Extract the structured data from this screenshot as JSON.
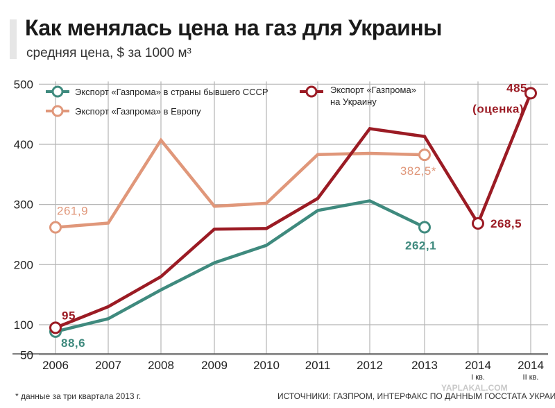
{
  "header": {
    "title": "Как менялась цена на газ для Украины",
    "subtitle": "средняя цена, $ за 1000 м³"
  },
  "footer": {
    "footnote": "* данные за три квартала 2013 г.",
    "source": "ИСТОЧНИКИ:  ГАЗПРОМ, ИНТЕРФАКС ПО ДАННЫМ ГОССТАТА УКРАИНЫ",
    "watermark": "YAPLAKAL.COM"
  },
  "colors": {
    "ukraine": "#9b1b24",
    "europe": "#e0977a",
    "ussr": "#3f8a7e",
    "grid": "#b5b5b5"
  },
  "chart_data": {
    "type": "line",
    "title": "Как менялась цена на газ для Украины",
    "ylabel": "средняя цена, $ за 1000 м³",
    "ylim": [
      50,
      500
    ],
    "yticks": [
      50,
      100,
      200,
      300,
      400,
      500
    ],
    "grid": true,
    "categories": [
      "2006",
      "2007",
      "2008",
      "2009",
      "2010",
      "2011",
      "2012",
      "2013",
      "2014",
      "2014"
    ],
    "sub_labels": [
      "",
      "",
      "",
      "",
      "",
      "",
      "",
      "",
      "I кв.",
      "II кв."
    ],
    "series": [
      {
        "name": "Экспорт «Газпрома» в страны бывшего СССР",
        "key": "ussr",
        "values": [
          88.6,
          110,
          158,
          203,
          232,
          290,
          306,
          262.1,
          null,
          null
        ]
      },
      {
        "name": "Экспорт «Газпрома» в Европу",
        "key": "europe",
        "values": [
          261.9,
          269,
          407,
          297,
          302,
          383,
          385,
          382.5,
          null,
          null
        ]
      },
      {
        "name": "Экспорт «Газпрома» на Украину",
        "key": "ukraine",
        "values": [
          95,
          130,
          180,
          259,
          260,
          310,
          426,
          413,
          268.5,
          485
        ]
      }
    ],
    "annotations": [
      {
        "series": "europe",
        "index": 0,
        "text": "261,9"
      },
      {
        "series": "europe",
        "index": 7,
        "text": "382,5*"
      },
      {
        "series": "ukraine",
        "index": 0,
        "text": "95"
      },
      {
        "series": "ussr",
        "index": 0,
        "text": "88,6"
      },
      {
        "series": "ussr",
        "index": 7,
        "text": "262,1"
      },
      {
        "series": "ukraine",
        "index": 8,
        "text": "268,5"
      },
      {
        "series": "ukraine",
        "index": 9,
        "text": "485"
      },
      {
        "series": "ukraine",
        "index": 9,
        "text": "(оценка)"
      }
    ],
    "legend": [
      {
        "key": "ussr",
        "text": "Экспорт «Газпрома» в страны бывшего СССР"
      },
      {
        "key": "europe",
        "text": "Экспорт «Газпрома» в Европу"
      },
      {
        "key": "ukraine",
        "text": "Экспорт «Газпрома»"
      },
      {
        "key": "ukraine",
        "text": "на Украину"
      }
    ]
  }
}
